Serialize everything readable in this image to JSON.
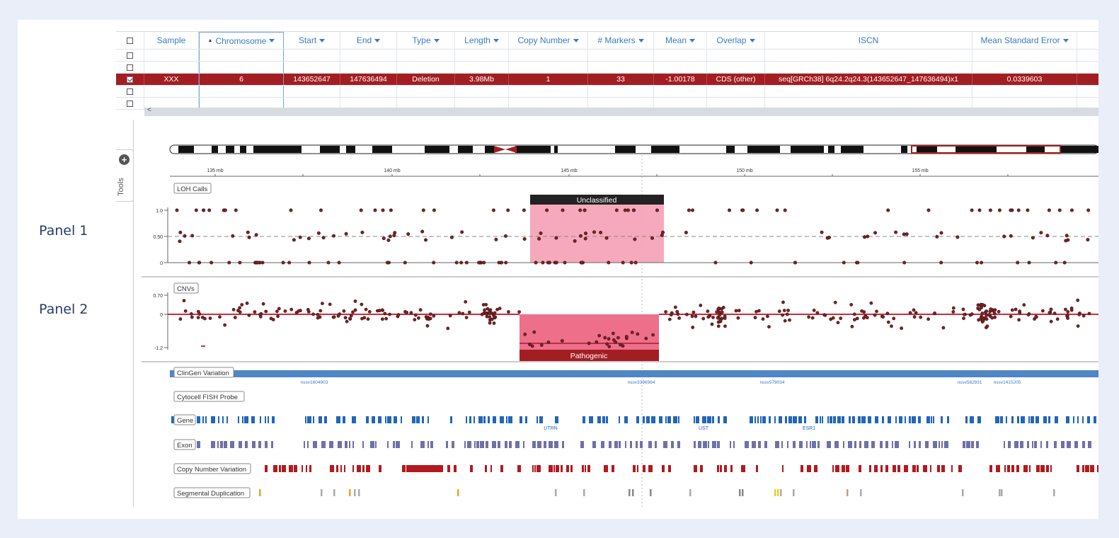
{
  "panel_labels": {
    "panel1": "Panel 1",
    "panel2": "Panel 2"
  },
  "table": {
    "headers": [
      "Sample",
      "Chromosome",
      "Start",
      "End",
      "Type",
      "Length",
      "Copy Number",
      "# Markers",
      "Mean",
      "Overlap",
      "ISCN",
      "Mean Standard Error"
    ],
    "sorted_column": "Chromosome",
    "selected_row": {
      "sample": "XXX",
      "chromosome": "6",
      "start": "143652647",
      "end": "147636494",
      "type": "Deletion",
      "length": "3.98Mb",
      "copy_number": "1",
      "markers": "33",
      "mean": "-1.00178",
      "overlap": "CDS (other)",
      "iscn": "seq[GRCh38] 6q24.2q24.3(143652647_147636494)x1",
      "mse": "0.0339603"
    }
  },
  "tools_label": "Tools",
  "ruler": {
    "labels": [
      "135 mb",
      "140 mb",
      "145 mb",
      "150 mb",
      "155 mb"
    ]
  },
  "loh": {
    "label": "LOH Calls",
    "ticks": [
      "1.0",
      "0.50",
      "0"
    ],
    "annotation": "Unclassified"
  },
  "cnv": {
    "label": "CNVs",
    "ticks": [
      "0.70",
      "0",
      "-1.2"
    ],
    "annotation": "Pathogenic"
  },
  "tracks": {
    "clingen": {
      "label": "ClinGen Variation",
      "ids": [
        "nssv1604903",
        "nssv3396964",
        "nssv579034",
        "nssv582931",
        "nssv1415205"
      ]
    },
    "fish": {
      "label": "Cytocell FISH Probe"
    },
    "gene": {
      "label": "Gene",
      "names": [
        "UTRN",
        "UST",
        "ESR1"
      ]
    },
    "exon": {
      "label": "Exon"
    },
    "cnv_track": {
      "label": "Copy Number Variation"
    },
    "segdup": {
      "label": "Segmental Duplication"
    }
  },
  "colors": {
    "selected_row": "#a31e22",
    "header_text": "#3a7cc4",
    "loh_highlight": "#f5a0b5",
    "cnv_highlight": "#ee6f8a",
    "cnv_label": "#a31e22",
    "unclassified": "#222222",
    "gene": "#2166b8",
    "exon": "#6e71a8",
    "cnv_track": "#b3191e"
  }
}
